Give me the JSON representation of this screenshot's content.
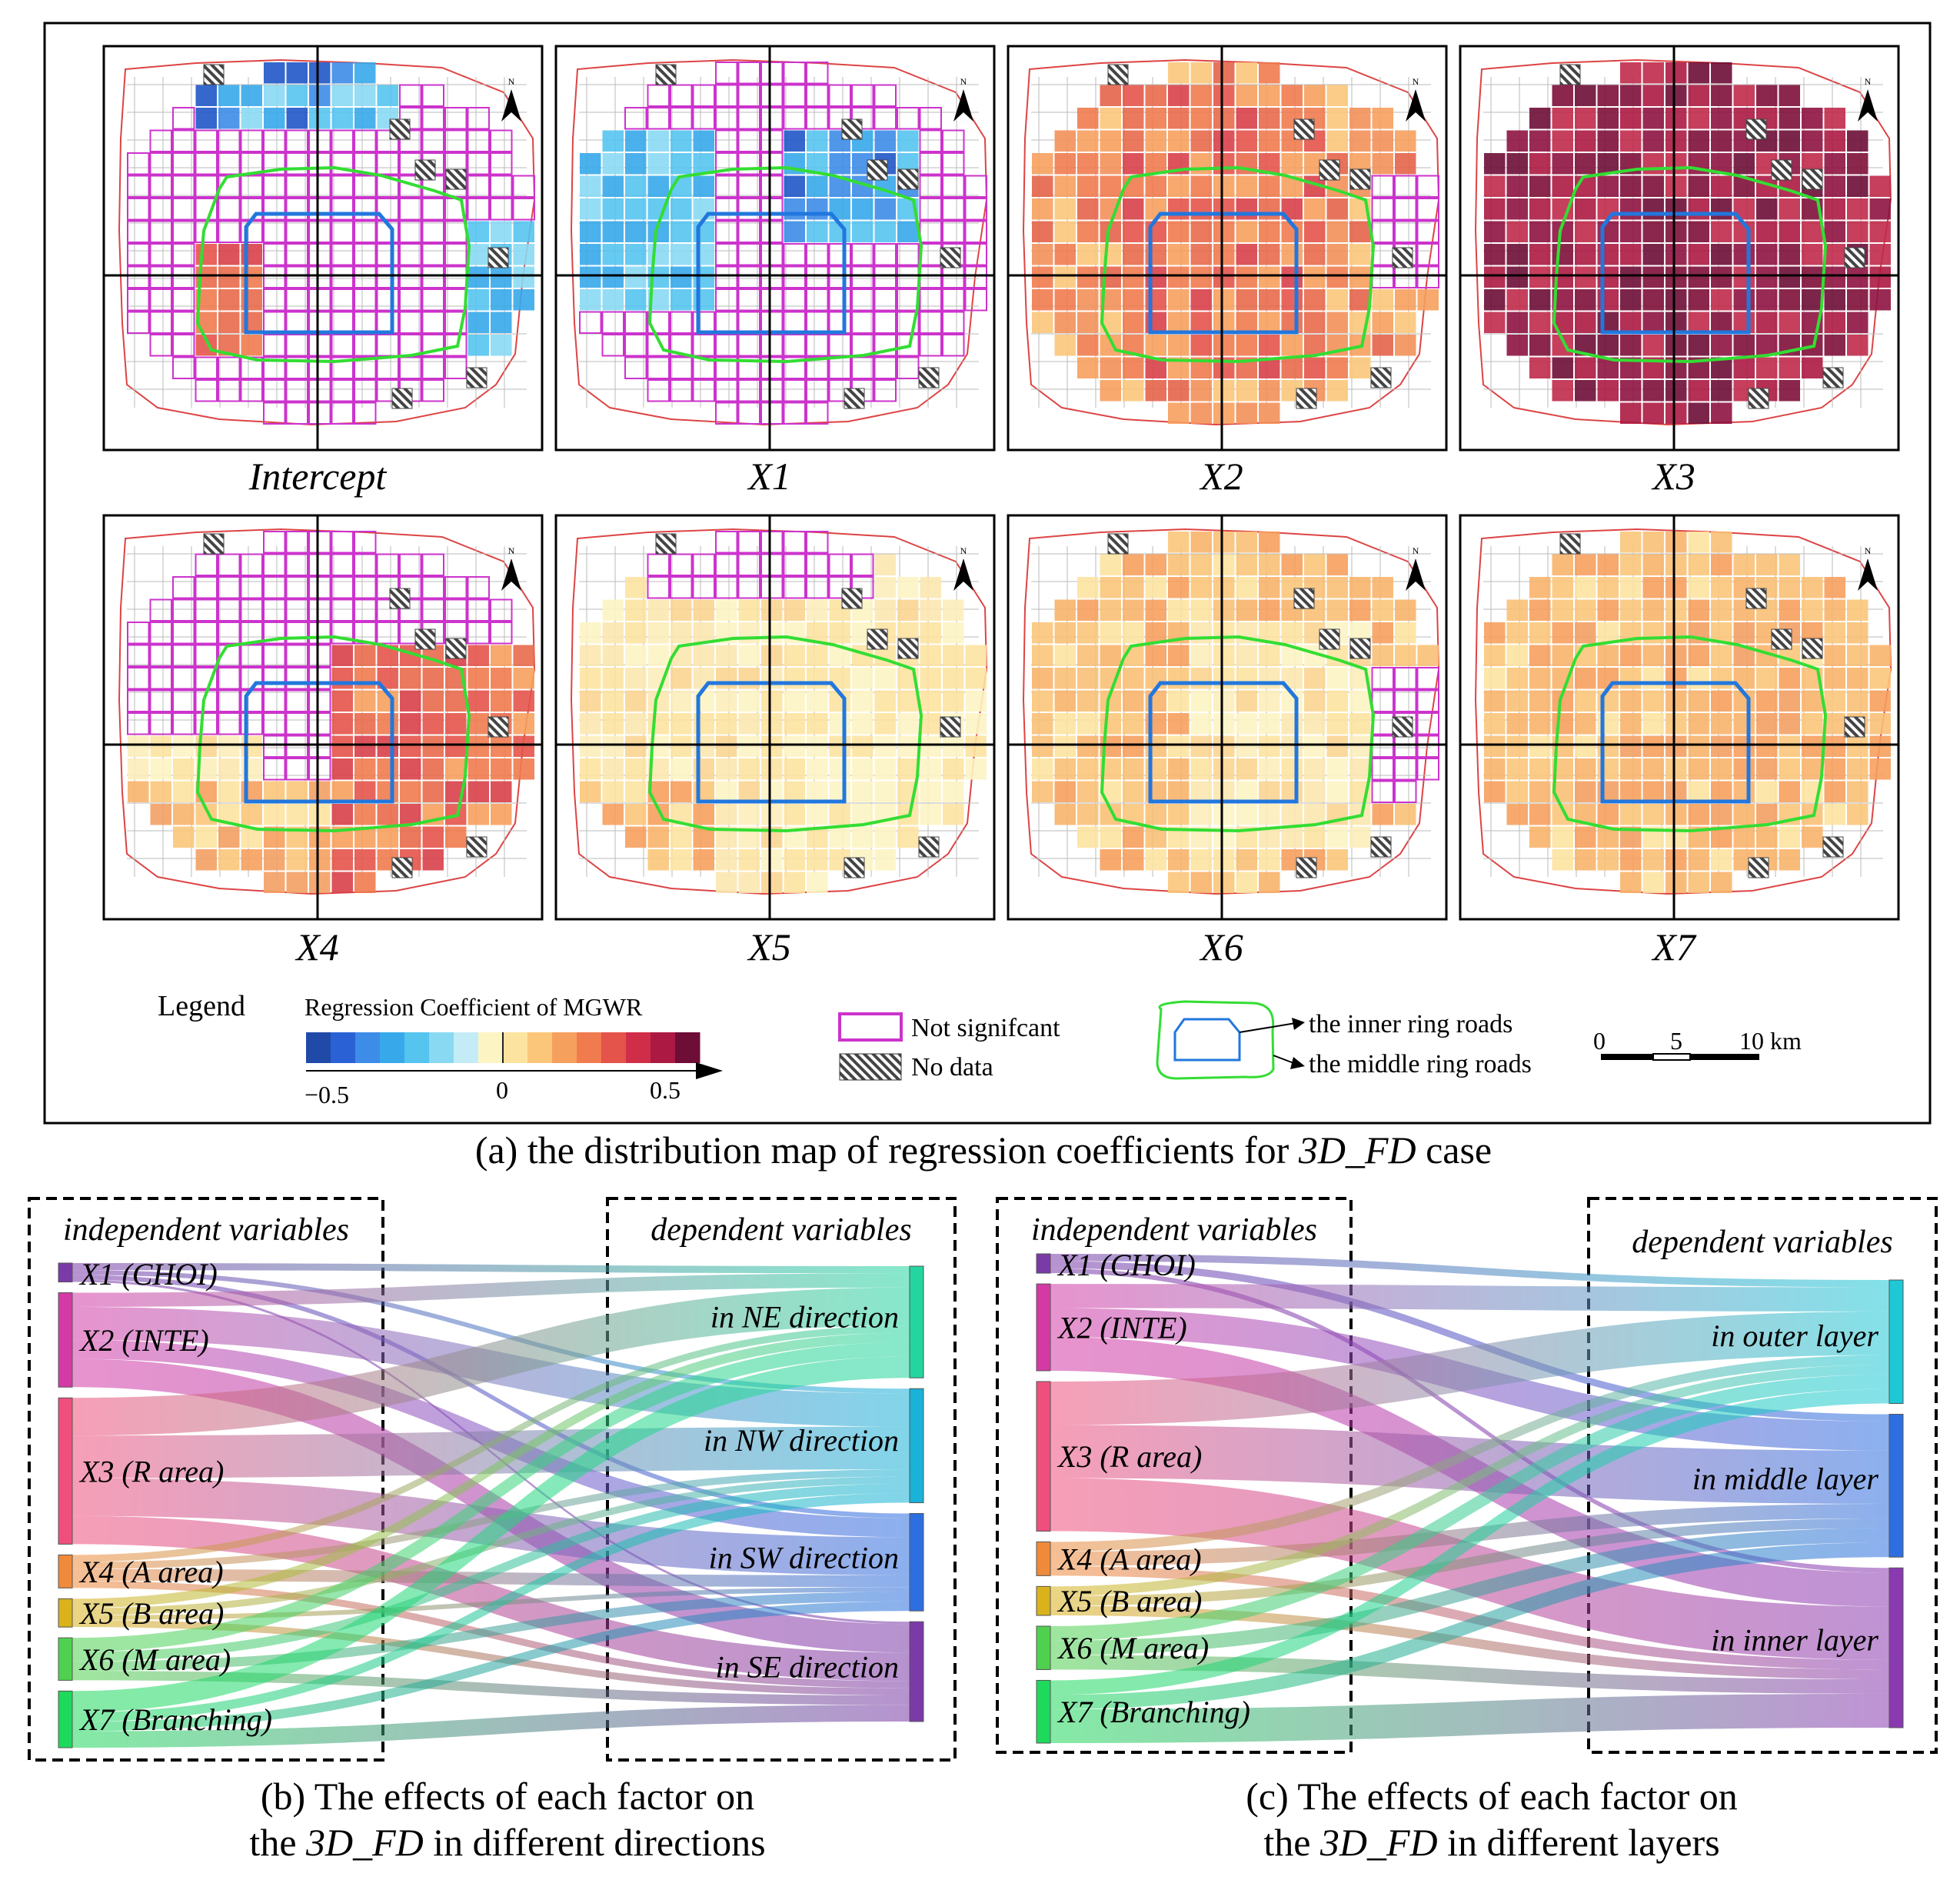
{
  "panel_a": {
    "maps": [
      {
        "label": "Intercept"
      },
      {
        "label": "X1"
      },
      {
        "label": "X2"
      },
      {
        "label": "X3"
      },
      {
        "label": "X4"
      },
      {
        "label": "X5"
      },
      {
        "label": "X6"
      },
      {
        "label": "X7"
      }
    ],
    "north_label": "N",
    "legend": {
      "title": "Legend",
      "colorbar_title": "Regression Coefficient of MGWR",
      "colorbar_ticks": [
        "−0.5",
        "0",
        "0.5"
      ],
      "colorbar_range": [
        -0.5,
        0.5
      ],
      "colorbar_colors": [
        "#1f4aa8",
        "#2a62d6",
        "#3d8ce8",
        "#37a9ea",
        "#55c4ef",
        "#8ad9f3",
        "#c4ecf7",
        "#fdf4c4",
        "#fde3a0",
        "#fbc67a",
        "#f6a05e",
        "#f07b4f",
        "#e4544a",
        "#d02e48",
        "#ac1a43",
        "#6e0d36"
      ],
      "not_significant": "Not signifcant",
      "no_data": "No data",
      "inner_ring": "the inner ring roads",
      "middle_ring": "the middle ring roads",
      "scale_ticks": [
        "0",
        "5",
        "10 km"
      ]
    },
    "caption_prefix": "(a) the distribution map of regression coefficients for ",
    "caption_var": "3D_FD",
    "caption_suffix": " case",
    "colors": {
      "not_significant": "#cc33cc",
      "middle_ring": "#33dd33",
      "inner_ring": "#2277dd",
      "city_boundary": "#dd4444"
    }
  },
  "panel_b": {
    "left_title": "independent variables",
    "right_title": "dependent variables",
    "sources": [
      "X1 (CHOI)",
      "X2 (INTE)",
      "X3 (R area)",
      "X4 (A area)",
      "X5 (B area)",
      "X6 (M area)",
      "X7 (Branching)"
    ],
    "targets": [
      "in  NE direction",
      "in  NW direction",
      "in  SW direction",
      "in  SE direction"
    ],
    "caption_line1": "(b) The effects of each factor  on",
    "caption_line2_prefix": "the ",
    "caption_var": "3D_FD",
    "caption_line2_suffix": " in different directions"
  },
  "panel_c": {
    "left_title": "independent variables",
    "right_title": "dependent variables",
    "sources": [
      "X1 (CHOI)",
      "X2 (INTE)",
      "X3 (R area)",
      "X4 (A area)",
      "X5 (B area)",
      "X6 (M area)",
      "X7 (Branching)"
    ],
    "targets": [
      "in  outer layer",
      "in  middle layer",
      "in  inner layer"
    ],
    "caption_line1": "(c) The effects of each factor  on",
    "caption_line2_prefix": "the ",
    "caption_var": "3D_FD",
    "caption_line2_suffix": " in different layers"
  },
  "source_colors": [
    "#7a3aa8",
    "#d43aa5",
    "#ef4f7c",
    "#ef8a3a",
    "#d9b21c",
    "#4fd14f",
    "#1fd95c"
  ],
  "direction_target_colors": [
    "#24d5a0",
    "#1ab2d8",
    "#2d6fe0",
    "#7a3aa8"
  ],
  "layer_target_colors": [
    "#1ec8d5",
    "#2d6fe0",
    "#8a3ab0"
  ],
  "chart_data": [
    {
      "type": "sankey",
      "title": "(b) The effects of each factor on the 3D_FD in different directions",
      "nodes_left": [
        "X1 (CHOI)",
        "X2 (INTE)",
        "X3 (R area)",
        "X4 (A area)",
        "X5 (B area)",
        "X6 (M area)",
        "X7 (Branching)"
      ],
      "nodes_right": [
        "in  NE direction",
        "in  NW direction",
        "in  SW direction",
        "in  SE direction"
      ],
      "source_totals": [
        0.4,
        2.0,
        3.1,
        0.7,
        0.6,
        0.9,
        1.2
      ],
      "flows": [
        [
          0.15,
          0.1,
          0.1,
          0.05
        ],
        [
          0.3,
          0.7,
          0.4,
          0.6
        ],
        [
          0.8,
          0.9,
          0.8,
          0.6
        ],
        [
          0.15,
          0.15,
          0.25,
          0.15
        ],
        [
          0.2,
          0.15,
          0.1,
          0.15
        ],
        [
          0.3,
          0.2,
          0.2,
          0.2
        ],
        [
          0.45,
          0.2,
          0.2,
          0.35
        ]
      ]
    },
    {
      "type": "sankey",
      "title": "(c) The effects of each factor on the 3D_FD in different layers",
      "nodes_left": [
        "X1 (CHOI)",
        "X2 (INTE)",
        "X3 (R area)",
        "X4 (A area)",
        "X5 (B area)",
        "X6 (M area)",
        "X7 (Branching)"
      ],
      "nodes_right": [
        "in  outer layer",
        "in  middle layer",
        "in  inner layer"
      ],
      "source_totals": [
        0.4,
        1.8,
        3.1,
        0.7,
        0.6,
        0.9,
        1.3
      ],
      "flows": [
        [
          0.15,
          0.15,
          0.1
        ],
        [
          0.5,
          0.6,
          0.7
        ],
        [
          0.9,
          1.1,
          1.1
        ],
        [
          0.2,
          0.3,
          0.2
        ],
        [
          0.2,
          0.2,
          0.2
        ],
        [
          0.3,
          0.3,
          0.3
        ],
        [
          0.3,
          0.3,
          0.7
        ]
      ]
    }
  ]
}
